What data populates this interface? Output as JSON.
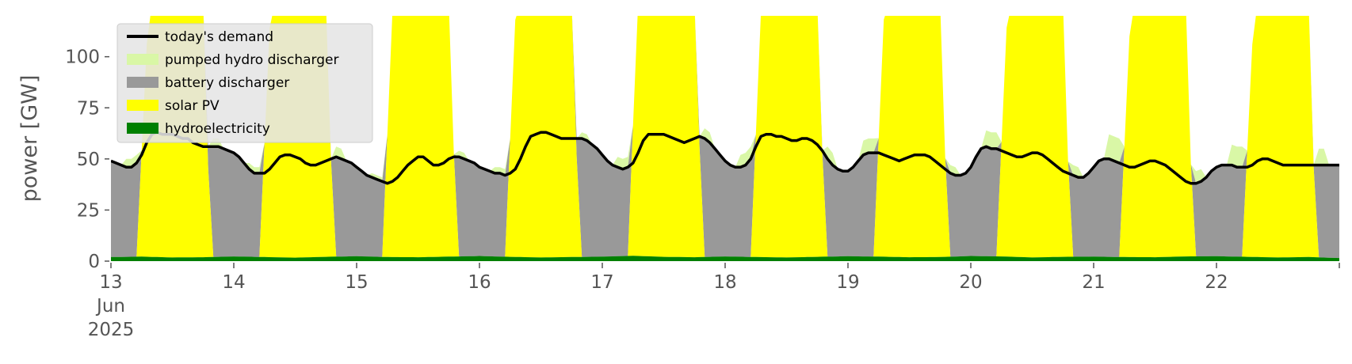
{
  "chart_data": {
    "type": "area",
    "ylabel": "power [GW]",
    "xlabel": "",
    "ylim": [
      0,
      120
    ],
    "xlim": [
      "2025-06-13 00:00",
      "2025-06-23 00:00"
    ],
    "x_ticks": [
      {
        "date": "2025-06-13",
        "lines": [
          "13",
          "Jun",
          "2025"
        ]
      },
      {
        "date": "2025-06-14",
        "lines": [
          "14"
        ]
      },
      {
        "date": "2025-06-15",
        "lines": [
          "15"
        ]
      },
      {
        "date": "2025-06-16",
        "lines": [
          "16"
        ]
      },
      {
        "date": "2025-06-17",
        "lines": [
          "17"
        ]
      },
      {
        "date": "2025-06-18",
        "lines": [
          "18"
        ]
      },
      {
        "date": "2025-06-19",
        "lines": [
          "19"
        ]
      },
      {
        "date": "2025-06-20",
        "lines": [
          "20"
        ]
      },
      {
        "date": "2025-06-21",
        "lines": [
          "21"
        ]
      },
      {
        "date": "2025-06-22",
        "lines": [
          "22"
        ]
      }
    ],
    "y_ticks": [
      0,
      25,
      50,
      75,
      100
    ],
    "grid": false,
    "legend_position": "top-left",
    "legend": [
      {
        "label": "today's demand",
        "kind": "line",
        "color": "#000000"
      },
      {
        "label": "pumped hydro discharger",
        "kind": "patch",
        "color": "#d9f7a6"
      },
      {
        "label": "battery discharger",
        "kind": "patch",
        "color": "#999999"
      },
      {
        "label": "solar PV",
        "kind": "patch",
        "color": "#ffff00"
      },
      {
        "label": "hydroelectricity",
        "kind": "patch",
        "color": "#008000"
      }
    ],
    "series": [
      {
        "name": "hydroelectricity",
        "kind": "stacked-area",
        "color": "#008000",
        "x_start": "2025-06-13 00:00",
        "step_hours": 6,
        "values": [
          2.0,
          2.2,
          1.8,
          1.9,
          2.3,
          2.0,
          1.7,
          2.1,
          2.4,
          2.0,
          1.9,
          2.2,
          2.5,
          2.1,
          1.8,
          2.0,
          2.2,
          2.6,
          2.1,
          1.9,
          2.3,
          2.0,
          1.8,
          2.1,
          2.4,
          2.2,
          1.9,
          2.0,
          2.5,
          2.3,
          1.8,
          2.1,
          2.2,
          2.0,
          1.9,
          2.3,
          2.4,
          2.1,
          1.8,
          2.0,
          1.5
        ]
      },
      {
        "name": "solar PV",
        "kind": "stacked-area",
        "color": "#ffff00",
        "daily_profile": {
          "sunrise_hour": 5.0,
          "full_hour": 7.5,
          "fade_hour": 18.0,
          "sunset_hour": 19.5
        },
        "daily_peak": [
          130,
          140,
          150,
          145,
          160,
          150,
          145,
          140,
          135,
          130
        ]
      },
      {
        "name": "battery discharger",
        "kind": "stacked-area",
        "color": "#999999",
        "x_start": "2025-06-13 00:00",
        "step_hours": 1,
        "values": [
          49,
          48,
          47,
          46,
          46,
          48,
          52,
          58,
          62,
          63,
          62,
          62,
          62,
          61,
          60,
          60,
          58,
          57,
          56,
          56,
          56,
          56,
          55,
          54,
          53,
          51,
          48,
          45,
          43,
          43,
          43,
          45,
          48,
          51,
          52,
          52,
          51,
          50,
          48,
          47,
          47,
          48,
          49,
          50,
          51,
          50,
          49,
          48,
          46,
          44,
          42,
          41,
          40,
          39,
          38,
          39,
          41,
          44,
          47,
          49,
          51,
          51,
          49,
          47,
          47,
          48,
          50,
          51,
          51,
          50,
          49,
          48,
          46,
          45,
          44,
          43,
          43,
          42,
          43,
          45,
          50,
          56,
          61,
          62,
          63,
          63,
          62,
          61,
          60,
          60,
          60,
          60,
          60,
          59,
          57,
          55,
          52,
          49,
          47,
          46,
          45,
          46,
          48,
          53,
          59,
          62,
          62,
          62,
          62,
          61,
          60,
          59,
          58,
          59,
          60,
          61,
          60,
          58,
          55,
          52,
          49,
          47,
          46,
          46,
          47,
          50,
          56,
          61,
          62,
          62,
          61,
          61,
          60,
          59,
          59,
          60,
          60,
          59,
          57,
          54,
          50,
          47,
          45,
          44,
          44,
          46,
          49,
          52,
          53,
          53,
          53,
          52,
          51,
          50,
          49,
          50,
          51,
          52,
          52,
          52,
          51,
          49,
          47,
          45,
          43,
          42,
          42,
          43,
          46,
          51,
          55,
          56,
          55,
          55,
          54,
          53,
          52,
          51,
          51,
          52,
          53,
          53,
          52,
          50,
          48,
          46,
          44,
          43,
          42,
          41,
          41,
          43,
          46,
          49,
          50,
          50,
          49,
          48,
          47,
          46,
          46,
          47,
          48,
          49,
          49,
          48,
          47,
          45,
          43,
          41,
          39,
          38,
          38,
          39,
          41,
          44,
          46,
          47,
          47,
          47,
          46,
          46,
          46,
          47,
          49,
          50,
          50,
          49,
          48,
          47
        ]
      },
      {
        "name": "pumped hydro discharger",
        "kind": "stacked-area",
        "color": "#d9f7a6",
        "note_visible": "extra band above battery at dawn/dusk",
        "daily_extra_dawn": [
          4,
          3,
          2,
          3,
          5,
          6,
          7,
          8,
          12,
          10
        ],
        "daily_extra_dusk": [
          4,
          5,
          3,
          3,
          5,
          6,
          4,
          5,
          6,
          8
        ]
      },
      {
        "name": "today's demand",
        "kind": "line",
        "color": "#000000",
        "x_start": "2025-06-13 00:00",
        "step_hours": 1,
        "values": [
          49,
          48,
          47,
          46,
          46,
          48,
          52,
          58,
          62,
          63,
          62,
          62,
          62,
          61,
          60,
          60,
          58,
          57,
          56,
          56,
          56,
          56,
          55,
          54,
          53,
          51,
          48,
          45,
          43,
          43,
          43,
          45,
          48,
          51,
          52,
          52,
          51,
          50,
          48,
          47,
          47,
          48,
          49,
          50,
          51,
          50,
          49,
          48,
          46,
          44,
          42,
          41,
          40,
          39,
          38,
          39,
          41,
          44,
          47,
          49,
          51,
          51,
          49,
          47,
          47,
          48,
          50,
          51,
          51,
          50,
          49,
          48,
          46,
          45,
          44,
          43,
          43,
          42,
          43,
          45,
          50,
          56,
          61,
          62,
          63,
          63,
          62,
          61,
          60,
          60,
          60,
          60,
          60,
          59,
          57,
          55,
          52,
          49,
          47,
          46,
          45,
          46,
          48,
          53,
          59,
          62,
          62,
          62,
          62,
          61,
          60,
          59,
          58,
          59,
          60,
          61,
          60,
          58,
          55,
          52,
          49,
          47,
          46,
          46,
          47,
          50,
          56,
          61,
          62,
          62,
          61,
          61,
          60,
          59,
          59,
          60,
          60,
          59,
          57,
          54,
          50,
          47,
          45,
          44,
          44,
          46,
          49,
          52,
          53,
          53,
          53,
          52,
          51,
          50,
          49,
          50,
          51,
          52,
          52,
          52,
          51,
          49,
          47,
          45,
          43,
          42,
          42,
          43,
          46,
          51,
          55,
          56,
          55,
          55,
          54,
          53,
          52,
          51,
          51,
          52,
          53,
          53,
          52,
          50,
          48,
          46,
          44,
          43,
          42,
          41,
          41,
          43,
          46,
          49,
          50,
          50,
          49,
          48,
          47,
          46,
          46,
          47,
          48,
          49,
          49,
          48,
          47,
          45,
          43,
          41,
          39,
          38,
          38,
          39,
          41,
          44,
          46,
          47,
          47,
          47,
          46,
          46,
          46,
          47,
          49,
          50,
          50,
          49,
          48,
          47
        ]
      }
    ]
  }
}
